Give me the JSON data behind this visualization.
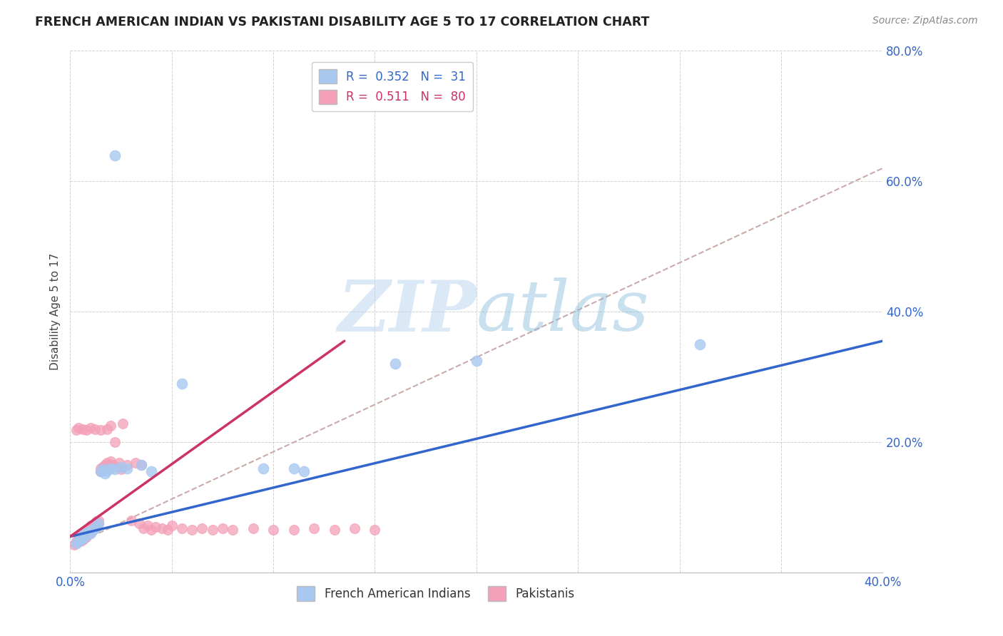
{
  "title": "FRENCH AMERICAN INDIAN VS PAKISTANI DISABILITY AGE 5 TO 17 CORRELATION CHART",
  "source": "Source: ZipAtlas.com",
  "ylabel": "Disability Age 5 to 17",
  "xlim": [
    0.0,
    0.4
  ],
  "ylim": [
    0.0,
    0.8
  ],
  "blue_R": 0.352,
  "blue_N": 31,
  "pink_R": 0.511,
  "pink_N": 80,
  "blue_color": "#A8C8F0",
  "pink_color": "#F4A0B8",
  "blue_line_color": "#3366CC",
  "pink_line_color": "#CC3366",
  "dash_line_color": "#CCAAAA",
  "background_color": "#FFFFFF",
  "watermark_zip": "ZIP",
  "watermark_atlas": "atlas",
  "legend_label_blue": "French American Indians",
  "legend_label_pink": "Pakistanis",
  "blue_line_x": [
    0.0,
    0.4
  ],
  "blue_line_y": [
    0.055,
    0.355
  ],
  "pink_line_x": [
    0.0,
    0.135
  ],
  "pink_line_y": [
    0.055,
    0.355
  ],
  "dash_line_x": [
    0.0,
    0.4
  ],
  "dash_line_y": [
    0.04,
    0.62
  ],
  "blue_pts_x": [
    0.003,
    0.004,
    0.005,
    0.006,
    0.007,
    0.007,
    0.008,
    0.009,
    0.01,
    0.011,
    0.012,
    0.013,
    0.014,
    0.015,
    0.016,
    0.017,
    0.018,
    0.02,
    0.022,
    0.025,
    0.028,
    0.035,
    0.04,
    0.055,
    0.095,
    0.11,
    0.115,
    0.16,
    0.2,
    0.31,
    0.022
  ],
  "blue_pts_y": [
    0.045,
    0.048,
    0.05,
    0.052,
    0.055,
    0.06,
    0.058,
    0.062,
    0.06,
    0.065,
    0.068,
    0.07,
    0.075,
    0.155,
    0.158,
    0.152,
    0.156,
    0.16,
    0.158,
    0.162,
    0.16,
    0.165,
    0.155,
    0.29,
    0.16,
    0.16,
    0.155,
    0.32,
    0.325,
    0.35,
    0.64
  ],
  "pink_pts_x": [
    0.002,
    0.003,
    0.003,
    0.004,
    0.004,
    0.005,
    0.005,
    0.005,
    0.006,
    0.006,
    0.006,
    0.007,
    0.007,
    0.007,
    0.008,
    0.008,
    0.008,
    0.009,
    0.009,
    0.01,
    0.01,
    0.01,
    0.011,
    0.011,
    0.012,
    0.012,
    0.013,
    0.013,
    0.014,
    0.014,
    0.015,
    0.015,
    0.016,
    0.016,
    0.017,
    0.017,
    0.018,
    0.018,
    0.019,
    0.02,
    0.02,
    0.021,
    0.022,
    0.023,
    0.024,
    0.025,
    0.026,
    0.028,
    0.03,
    0.032,
    0.034,
    0.035,
    0.036,
    0.038,
    0.04,
    0.042,
    0.045,
    0.048,
    0.05,
    0.055,
    0.06,
    0.065,
    0.07,
    0.075,
    0.08,
    0.09,
    0.1,
    0.11,
    0.12,
    0.13,
    0.14,
    0.15,
    0.003,
    0.004,
    0.006,
    0.008,
    0.01,
    0.012,
    0.015,
    0.018
  ],
  "pink_pts_y": [
    0.042,
    0.045,
    0.048,
    0.05,
    0.052,
    0.048,
    0.055,
    0.058,
    0.05,
    0.055,
    0.06,
    0.052,
    0.058,
    0.062,
    0.055,
    0.06,
    0.065,
    0.06,
    0.065,
    0.062,
    0.068,
    0.072,
    0.065,
    0.07,
    0.068,
    0.075,
    0.072,
    0.078,
    0.075,
    0.08,
    0.155,
    0.16,
    0.158,
    0.162,
    0.16,
    0.165,
    0.162,
    0.168,
    0.165,
    0.17,
    0.225,
    0.165,
    0.2,
    0.162,
    0.168,
    0.158,
    0.228,
    0.165,
    0.08,
    0.168,
    0.075,
    0.165,
    0.068,
    0.072,
    0.065,
    0.07,
    0.068,
    0.065,
    0.072,
    0.068,
    0.065,
    0.068,
    0.065,
    0.068,
    0.065,
    0.068,
    0.065,
    0.065,
    0.068,
    0.065,
    0.068,
    0.065,
    0.218,
    0.222,
    0.22,
    0.218,
    0.222,
    0.22,
    0.218,
    0.22
  ]
}
